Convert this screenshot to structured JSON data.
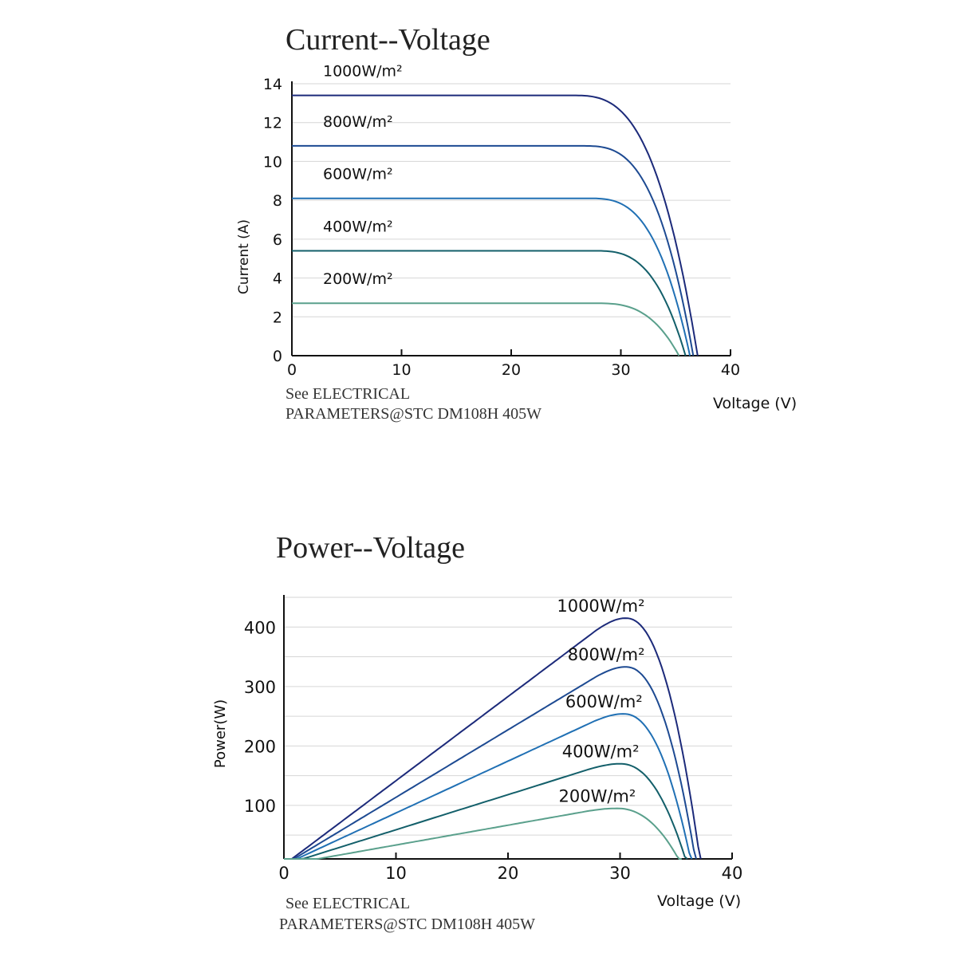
{
  "chart_data": [
    {
      "type": "line",
      "title": "Current--Voltage",
      "xlabel": "Voltage (V)",
      "ylabel": "Current (A)",
      "xlim": [
        0,
        40
      ],
      "ylim": [
        0,
        14
      ],
      "x_ticks": [
        "0",
        "10",
        "20",
        "30",
        "40"
      ],
      "y_ticks": [
        "0",
        "2",
        "4",
        "6",
        "8",
        "10",
        "12",
        "14"
      ],
      "grid": "horizontal",
      "note_lines": [
        "See ELECTRICAL",
        "PARAMETERS@STC DM108H 405W"
      ],
      "series": [
        {
          "name": "1000W/m²",
          "color": "#1c2a7a",
          "isc": 13.4,
          "voc": 37.0,
          "knee": 25.5,
          "curve_labels": "left"
        },
        {
          "name": "800W/m²",
          "color": "#1d4a92",
          "isc": 10.8,
          "voc": 36.6,
          "knee": 26.5
        },
        {
          "name": "600W/m²",
          "color": "#2070b4",
          "isc": 8.1,
          "voc": 36.3,
          "knee": 27.0
        },
        {
          "name": "400W/m²",
          "color": "#135f6a",
          "isc": 5.4,
          "voc": 35.9,
          "knee": 27.5
        },
        {
          "name": "200W/m²",
          "color": "#5aa08c",
          "isc": 2.7,
          "voc": 35.3,
          "knee": 27.5
        }
      ]
    },
    {
      "type": "line",
      "title": "Power--Voltage",
      "xlabel": "Voltage (V)",
      "ylabel": "Power(W)",
      "xlim": [
        0,
        40
      ],
      "ylim": [
        10,
        450
      ],
      "x_ticks": [
        "0",
        "10",
        "20",
        "30",
        "40"
      ],
      "y_ticks": [
        "100",
        "200",
        "300",
        "400"
      ],
      "grid": "horizontal",
      "note_lines": [
        "See ELECTRICAL",
        "PARAMETERS@STC DM108H 405W"
      ],
      "series": [
        {
          "name": "1000W/m²",
          "color": "#1c2a7a",
          "pmax": 415,
          "vmp": 30.5,
          "voc": 37.2
        },
        {
          "name": "800W/m²",
          "color": "#1d4a92",
          "pmax": 333,
          "vmp": 30.5,
          "voc": 36.8
        },
        {
          "name": "600W/m²",
          "color": "#2070b4",
          "pmax": 254,
          "vmp": 30.3,
          "voc": 36.4
        },
        {
          "name": "400W/m²",
          "color": "#135f6a",
          "pmax": 170,
          "vmp": 30.0,
          "voc": 36.0
        },
        {
          "name": "200W/m²",
          "color": "#5aa08c",
          "pmax": 95,
          "vmp": 29.7,
          "voc": 35.5
        }
      ]
    }
  ]
}
